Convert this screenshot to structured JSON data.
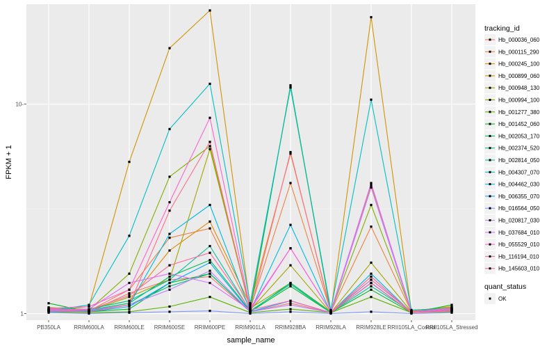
{
  "chart_data": {
    "type": "line",
    "xlabel": "sample_name",
    "ylabel": "FPKM + 1",
    "y_scale": "log10",
    "ylim": [
      0.93,
      30
    ],
    "y_ticks": [
      1,
      10
    ],
    "y_tick_labels": [
      "1",
      "10-"
    ],
    "grid": true,
    "legend_placement": "right",
    "categories": [
      "PB350LA",
      "RRIM600LA",
      "RRIM600LE",
      "RRIM600SE",
      "RRIM600PE",
      "RRIM901LA",
      "RRIM928BA",
      "RRIM928LA",
      "RRIM928LE",
      "RRII105LA_Control",
      "RRII105LA_Stressed"
    ],
    "x_tick_labels": [
      "PB350LA",
      "RRIM600LA",
      "RRIM600LE",
      "RRIM600SE",
      "RRIM600PE",
      "RRIM901LA",
      "RRIM928BA",
      "RRIM928LA",
      "RRIM928LE",
      "RRII105LA_Control",
      "RRII105LA_Stressed"
    ],
    "series_legend_title": "tracking_id",
    "series": [
      {
        "name": "Hb_000036_060",
        "color": "#F8766D",
        "values": [
          1.05,
          1.02,
          1.25,
          1.45,
          1.5,
          1.02,
          1.12,
          1.01,
          1.5,
          1.01,
          1.05
        ]
      },
      {
        "name": "Hb_000115_290",
        "color": "#EE8043",
        "values": [
          1.06,
          1.03,
          1.3,
          2.3,
          2.55,
          1.05,
          4.2,
          1.02,
          2.6,
          1.02,
          1.06
        ]
      },
      {
        "name": "Hb_000245_100",
        "color": "#E08B00",
        "values": [
          1.04,
          1.05,
          1.15,
          2.0,
          2.75,
          1.1,
          5.8,
          1.03,
          4.1,
          1.03,
          1.08
        ]
      },
      {
        "name": "Hb_000899_060",
        "color": "#D09400",
        "values": [
          1.03,
          1.08,
          5.3,
          18.5,
          28.0,
          1.08,
          12.0,
          1.01,
          26.0,
          1.02,
          1.06
        ]
      },
      {
        "name": "Hb_000948_130",
        "color": "#A3A500",
        "values": [
          1.05,
          1.03,
          1.2,
          1.45,
          6.1,
          1.04,
          1.7,
          1.01,
          1.75,
          1.02,
          1.05
        ]
      },
      {
        "name": "Hb_000994_100",
        "color": "#85AD00",
        "values": [
          1.07,
          1.04,
          1.55,
          4.5,
          6.3,
          1.06,
          1.4,
          1.02,
          3.3,
          1.02,
          1.07
        ]
      },
      {
        "name": "Hb_001277_380",
        "color": "#5BB300",
        "values": [
          1.02,
          1.01,
          1.02,
          1.08,
          1.2,
          1.01,
          1.05,
          1.01,
          1.2,
          1.01,
          1.02
        ]
      },
      {
        "name": "Hb_001452_060",
        "color": "#00B81F",
        "values": [
          1.12,
          1.02,
          1.05,
          1.4,
          1.55,
          1.02,
          1.35,
          1.01,
          1.3,
          1.01,
          1.1
        ]
      },
      {
        "name": "Hb_002053_170",
        "color": "#00BC59",
        "values": [
          1.03,
          1.04,
          1.12,
          1.5,
          1.8,
          1.03,
          12.3,
          1.01,
          1.4,
          1.01,
          1.04
        ]
      },
      {
        "name": "Hb_002374_520",
        "color": "#00BF7D",
        "values": [
          1.04,
          1.03,
          1.1,
          1.35,
          1.55,
          1.02,
          1.4,
          1.01,
          1.45,
          1.02,
          1.05
        ]
      },
      {
        "name": "Hb_002814_050",
        "color": "#00C19C",
        "values": [
          1.05,
          1.05,
          1.15,
          1.45,
          2.1,
          1.03,
          1.38,
          1.01,
          1.35,
          1.02,
          1.04
        ]
      },
      {
        "name": "Hb_004307_070",
        "color": "#00BFC4",
        "values": [
          1.03,
          1.1,
          2.35,
          7.6,
          12.5,
          1.12,
          12.0,
          1.04,
          10.5,
          1.04,
          1.06
        ]
      },
      {
        "name": "Hb_004462_030",
        "color": "#00B8E5",
        "values": [
          1.02,
          1.03,
          1.1,
          2.4,
          3.3,
          1.03,
          2.65,
          1.01,
          1.55,
          1.01,
          1.04
        ]
      },
      {
        "name": "Hb_006355_070",
        "color": "#00A9FF",
        "values": [
          1.04,
          1.02,
          1.08,
          1.4,
          1.75,
          1.02,
          1.15,
          1.01,
          1.4,
          1.01,
          1.03
        ]
      },
      {
        "name": "Hb_016564_050",
        "color": "#7F96FF",
        "values": [
          1.01,
          1.0,
          1.01,
          1.02,
          1.03,
          1.0,
          1.02,
          1.0,
          1.02,
          1.0,
          1.01
        ]
      },
      {
        "name": "Hb_020817_030",
        "color": "#BC81FF",
        "values": [
          1.03,
          1.04,
          1.1,
          1.3,
          1.6,
          1.02,
          1.1,
          1.01,
          4.0,
          1.01,
          1.03
        ]
      },
      {
        "name": "Hb_037684_010",
        "color": "#E16CFF",
        "values": [
          1.04,
          1.05,
          1.4,
          1.55,
          1.4,
          1.04,
          2.05,
          1.02,
          4.2,
          1.02,
          1.05
        ]
      },
      {
        "name": "Hb_055529_010",
        "color": "#FD61D1",
        "values": [
          1.06,
          1.08,
          1.3,
          3.4,
          8.6,
          1.06,
          2.05,
          1.02,
          1.45,
          1.02,
          1.06
        ]
      },
      {
        "name": "Hb_116194_010",
        "color": "#FF67A4",
        "values": [
          1.05,
          1.04,
          1.22,
          1.7,
          1.95,
          1.04,
          1.15,
          1.01,
          1.4,
          1.01,
          1.04
        ]
      },
      {
        "name": "Hb_145603_010",
        "color": "#FF6C91",
        "values": [
          1.03,
          1.02,
          1.1,
          3.1,
          6.6,
          1.03,
          5.9,
          1.01,
          1.5,
          1.01,
          1.03
        ]
      }
    ],
    "shape_legend_title": "quant_status",
    "shape_legend_items": [
      "OK"
    ]
  }
}
